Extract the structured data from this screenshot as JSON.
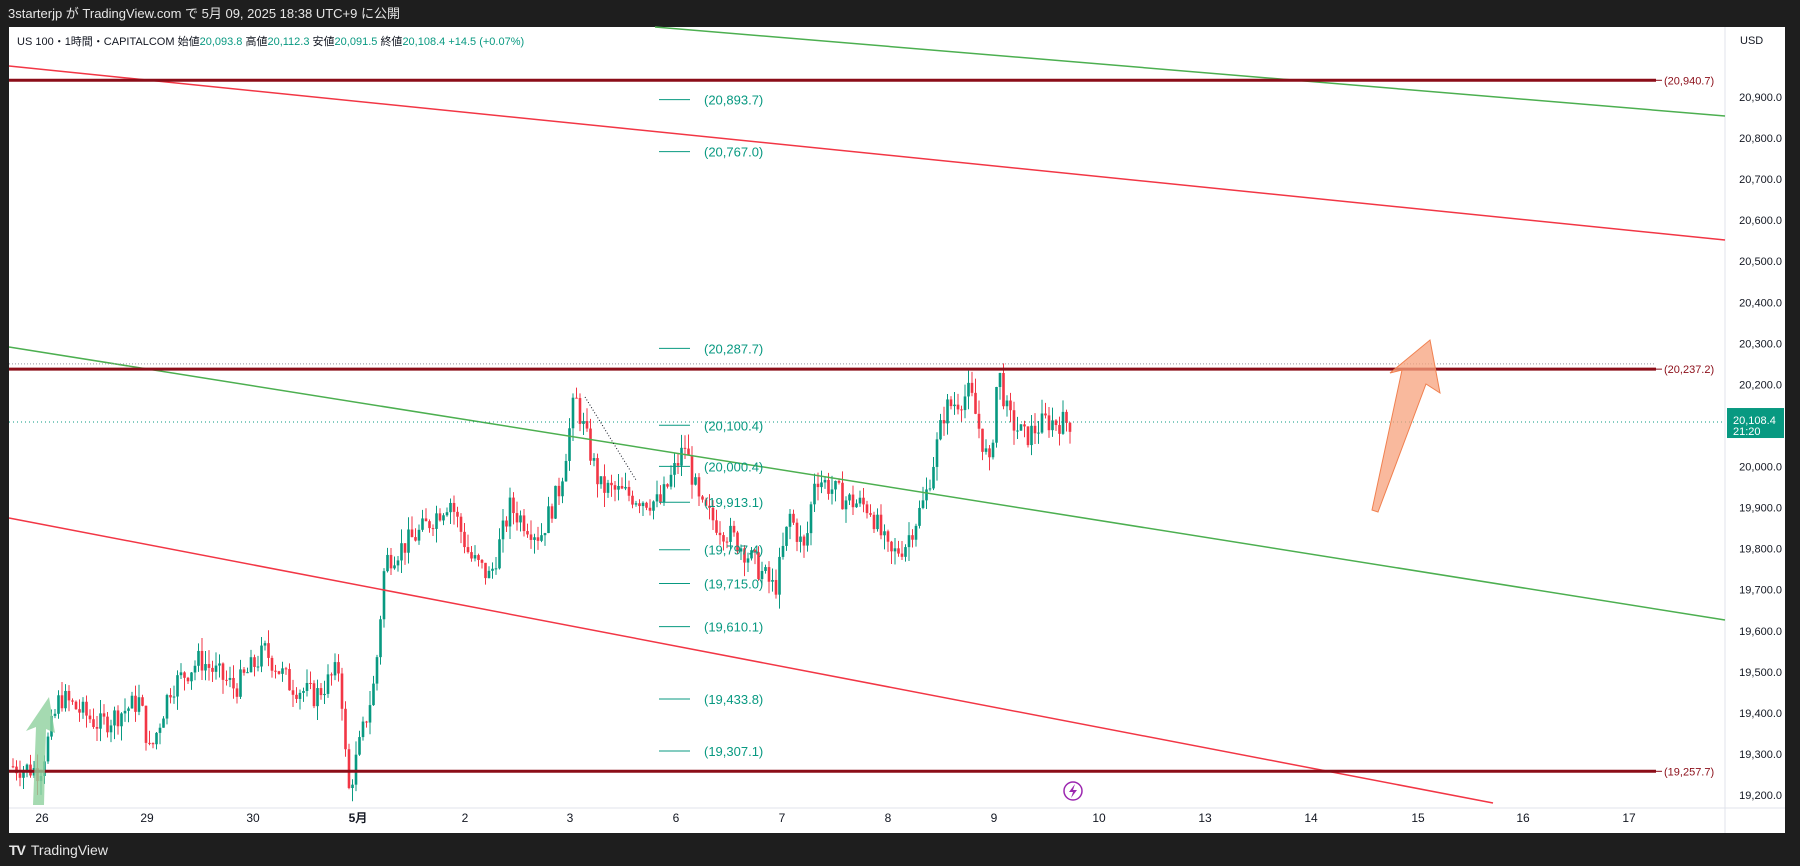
{
  "header": {
    "publish_info": "3starterjp が TradingView.com で 5月 09, 2025 18:38 UTC+9 に公開"
  },
  "legend": {
    "symbol": "US 100・1時間・CAPITALCOM",
    "open_label": "始値",
    "open": "20,093.8",
    "high_label": "高値",
    "high": "20,112.3",
    "low_label": "安値",
    "low": "20,091.5",
    "close_label": "終値",
    "close": "20,108.4",
    "change": "+14.5 (+0.07%)"
  },
  "price_axis": {
    "currency": "USD",
    "ticks": [
      "20,900.0",
      "20,800.0",
      "20,700.0",
      "20,600.0",
      "20,500.0",
      "20,400.0",
      "20,300.0",
      "20,200.0",
      "20,000.0",
      "19,900.0",
      "19,800.0",
      "19,700.0",
      "19,600.0",
      "19,500.0",
      "19,400.0",
      "19,300.0",
      "19,200.0"
    ],
    "tick_values": [
      20900,
      20800,
      20700,
      20600,
      20500,
      20400,
      20300,
      20200,
      20000,
      19900,
      19800,
      19700,
      19600,
      19500,
      19400,
      19300,
      19200
    ],
    "current_price": "20,108.4",
    "countdown": "21:20"
  },
  "time_axis": {
    "labels": [
      "26",
      "29",
      "30",
      "5月",
      "2",
      "3",
      "6",
      "7",
      "8",
      "9",
      "10",
      "13",
      "14",
      "15",
      "16",
      "17"
    ]
  },
  "horizontal_levels": [
    {
      "label": "(20,940.7)",
      "value": 20940.7
    },
    {
      "label": "(20,237.2)",
      "value": 20237.2
    },
    {
      "label": "(19,257.7)",
      "value": 19257.7
    }
  ],
  "fib_levels": [
    {
      "label": "(20,893.7)",
      "value": 20893.7
    },
    {
      "label": "(20,767.0)",
      "value": 20767.0
    },
    {
      "label": "(20,287.7)",
      "value": 20287.7
    },
    {
      "label": "(20,100.4)",
      "value": 20100.4
    },
    {
      "label": "(20,000.4)",
      "value": 20000.4
    },
    {
      "label": "(19,913.1)",
      "value": 19913.1
    },
    {
      "label": "(19,797.4)",
      "value": 19797.4
    },
    {
      "label": "(19,715.0)",
      "value": 19715.0
    },
    {
      "label": "(19,610.1)",
      "value": 19610.1
    },
    {
      "label": "(19,433.8)",
      "value": 19433.8
    },
    {
      "label": "(19,307.1)",
      "value": 19307.1
    }
  ],
  "footer": {
    "brand": "TradingView"
  },
  "colors": {
    "up": "#089981",
    "down": "#f23645",
    "level": "#8b0d18",
    "green_channel": "#4caf50",
    "red_channel": "#f23645",
    "arrow": "#f7a27c"
  }
}
